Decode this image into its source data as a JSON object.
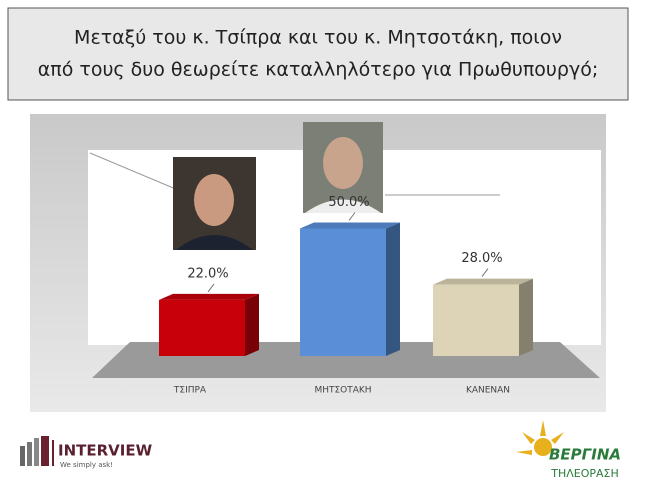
{
  "chart_data": {
    "type": "bar3d",
    "title": "Μεταξύ του κ. Τσίπρα και του κ. Μητσοτάκη, ποιον από τους δυο θεωρείτε καταλληλότερο για Πρωθυπουργό;",
    "categories": [
      "ΤΣΙΠΡΑ",
      "ΜΗΤΣΟΤΑΚΗ",
      "ΚΑΝΕΝΑΝ"
    ],
    "values": [
      22,
      50,
      28
    ],
    "value_labels": [
      "22.0%",
      "50.0%",
      "28.0%"
    ],
    "colors": [
      "#c8000a",
      "#5a8fd8",
      "#ddd3b6"
    ]
  },
  "logos": {
    "pollster": "INTERVIEW",
    "pollster_slogan": "We simply ask!",
    "channel": "ΒΕΡΓΙΝΑ",
    "channel_sub": "ΤΗΛΕΟΡΑΣΗ"
  }
}
